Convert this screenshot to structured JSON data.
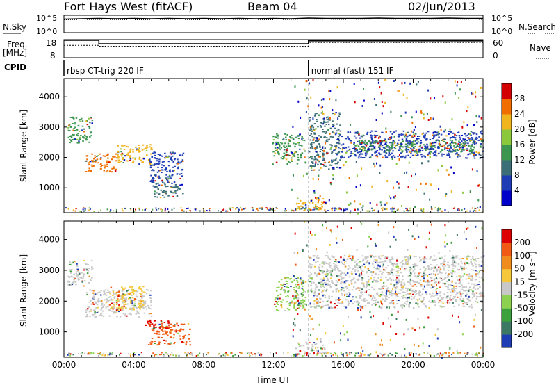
{
  "header": {
    "station": "Fort Hays West (fitACF)",
    "beam": "Beam 04",
    "date": "02/Jun/2013"
  },
  "noise_panel": {
    "left_label": "N.Sky",
    "left_ticks": [
      "10^5",
      "10^0"
    ],
    "right_ticks": [
      "10^5",
      "10^0"
    ],
    "right_label": "N.Search"
  },
  "freq_panel": {
    "left_label_1": "Freq.",
    "left_label_2": "[MHz]",
    "left_ticks": [
      "18",
      "8"
    ],
    "right_ticks": [
      "60",
      "0"
    ],
    "right_label": "Nave",
    "cpid_label": "CPID"
  },
  "cpid_segments": [
    {
      "label": "rbsp CT-trig 220 IF",
      "start": 0,
      "end": 14
    },
    {
      "label": "normal (fast) 151 IF",
      "start": 14,
      "end": 24
    }
  ],
  "chart_data": [
    {
      "type": "line",
      "name": "noise",
      "ylim": [
        0,
        5
      ],
      "yscale": "log",
      "series": [
        {
          "name": "N.Sky",
          "style": "solid",
          "values": [
            [
              0,
              3.9
            ],
            [
              1,
              4.0
            ],
            [
              2,
              4.1
            ],
            [
              3,
              4.0
            ],
            [
              4,
              4.1
            ],
            [
              5,
              4.0
            ],
            [
              6,
              4.1
            ],
            [
              7,
              4.0
            ],
            [
              8,
              4.1
            ],
            [
              9,
              4.0
            ],
            [
              10,
              4.1
            ],
            [
              11,
              4.0
            ],
            [
              12,
              4.1
            ],
            [
              13,
              4.0
            ],
            [
              14,
              4.2
            ],
            [
              15,
              4.1
            ],
            [
              16,
              4.1
            ],
            [
              17,
              4.1
            ],
            [
              18,
              4.2
            ],
            [
              19,
              4.1
            ],
            [
              20,
              4.1
            ],
            [
              21,
              4.1
            ],
            [
              22,
              4.2
            ],
            [
              23,
              4.1
            ],
            [
              24,
              4.1
            ]
          ]
        },
        {
          "name": "N.Search",
          "style": "dotted",
          "values": [
            [
              0,
              3.7
            ],
            [
              2,
              3.8
            ],
            [
              4,
              3.7
            ],
            [
              6,
              3.8
            ],
            [
              8,
              3.7
            ],
            [
              10,
              3.8
            ],
            [
              12,
              3.7
            ],
            [
              14,
              3.9
            ],
            [
              16,
              3.8
            ],
            [
              18,
              3.9
            ],
            [
              20,
              3.8
            ],
            [
              22,
              3.9
            ],
            [
              24,
              3.8
            ]
          ]
        }
      ]
    },
    {
      "type": "line",
      "name": "frequency",
      "ylim": [
        8,
        18
      ],
      "y2lim": [
        0,
        60
      ],
      "series": [
        {
          "name": "Freq.",
          "unit": "MHz",
          "style": "solid",
          "values": [
            [
              0,
              17.6
            ],
            [
              2,
              17.6
            ],
            [
              2,
              15.7
            ],
            [
              14,
              15.7
            ],
            [
              14,
              17.3
            ],
            [
              24,
              17.3
            ]
          ]
        },
        {
          "name": "Nave",
          "style": "dotted",
          "values": [
            [
              0,
              41
            ],
            [
              2,
              41
            ],
            [
              2,
              38
            ],
            [
              14,
              38
            ],
            [
              14,
              50
            ],
            [
              24,
              50
            ]
          ]
        }
      ]
    },
    {
      "type": "heatmap",
      "name": "power",
      "xlabel": "",
      "ylabel": "Slant Range [km]",
      "xlim": [
        0,
        24
      ],
      "ylim": [
        180,
        4600
      ],
      "yticks": [
        1000,
        2000,
        3000,
        4000
      ],
      "colorbar": {
        "label": "Power [dB]",
        "ticks": [
          "28",
          "24",
          "20",
          "16",
          "12",
          "8",
          "4"
        ],
        "colors": [
          "#0000c8",
          "#1e3cb4",
          "#3c6e78",
          "#3c9650",
          "#8cc83c",
          "#f0b41e",
          "#f06e00",
          "#d20000"
        ]
      },
      "bands": [
        {
          "x0": 0.2,
          "x1": 1.6,
          "y0": 2500,
          "y1": 3350,
          "color": "#3c9650"
        },
        {
          "x0": 1.2,
          "x1": 3.0,
          "y0": 1550,
          "y1": 2150,
          "color": "#f06e00"
        },
        {
          "x0": 3.0,
          "x1": 5.0,
          "y0": 1800,
          "y1": 2450,
          "color": "#f0b41e"
        },
        {
          "x0": 5.0,
          "x1": 6.8,
          "y0": 700,
          "y1": 1200,
          "color": "#3c6e78"
        },
        {
          "x0": 4.8,
          "x1": 6.8,
          "y0": 1200,
          "y1": 2200,
          "color": "#1e3cb4"
        },
        {
          "x0": 11.9,
          "x1": 13.8,
          "y0": 1800,
          "y1": 2800,
          "color": "#3c9650"
        },
        {
          "x0": 13.2,
          "x1": 15.0,
          "y0": 300,
          "y1": 700,
          "color": "#f0b41e"
        },
        {
          "x0": 14.0,
          "x1": 15.8,
          "y0": 1600,
          "y1": 3500,
          "color": "#3c6e78"
        },
        {
          "x0": 15.5,
          "x1": 24.0,
          "y0": 2000,
          "y1": 2900,
          "color": "#1e3cb4"
        },
        {
          "x0": 16.5,
          "x1": 23.5,
          "y0": 2200,
          "y1": 2600,
          "color": "#3c9650"
        }
      ]
    },
    {
      "type": "heatmap",
      "name": "velocity",
      "xlabel": "Time UT",
      "ylabel": "Slant Range [km]",
      "xlim": [
        0,
        24
      ],
      "ylim": [
        180,
        4600
      ],
      "xticks": [
        "00:00",
        "04:00",
        "08:00",
        "12:00",
        "16:00",
        "20:00",
        "00:00"
      ],
      "yticks": [
        1000,
        2000,
        3000,
        4000
      ],
      "colorbar": {
        "label": "Velocity [m s⁻¹]",
        "ticks": [
          "200",
          "100",
          "50",
          "15",
          "-15",
          "-50",
          "-100",
          "-200"
        ],
        "colors": [
          "#1e3cb4",
          "#3c7864",
          "#3ca03c",
          "#8cd250",
          "#c8c8c8",
          "#f5c83c",
          "#f08c1e",
          "#f05a14",
          "#dc0000"
        ]
      },
      "bands": [
        {
          "x0": 0.2,
          "x1": 1.6,
          "y0": 2500,
          "y1": 3350,
          "color": "#c8c8c8"
        },
        {
          "x0": 1.2,
          "x1": 5.0,
          "y0": 1500,
          "y1": 2400,
          "color": "#c8c8c8"
        },
        {
          "x0": 2.6,
          "x1": 4.6,
          "y0": 1700,
          "y1": 2500,
          "color": "#f5c83c"
        },
        {
          "x0": 4.8,
          "x1": 7.2,
          "y0": 600,
          "y1": 1300,
          "color": "#f05a14"
        },
        {
          "x0": 4.6,
          "x1": 6.0,
          "y0": 1100,
          "y1": 1400,
          "color": "#dc0000"
        },
        {
          "x0": 12.0,
          "x1": 13.8,
          "y0": 1700,
          "y1": 2800,
          "color": "#8cd250"
        },
        {
          "x0": 13.2,
          "x1": 15.0,
          "y0": 300,
          "y1": 700,
          "color": "#c8c8c8"
        },
        {
          "x0": 14.0,
          "x1": 24.0,
          "y0": 1800,
          "y1": 3500,
          "color": "#c8c8c8"
        }
      ]
    }
  ]
}
